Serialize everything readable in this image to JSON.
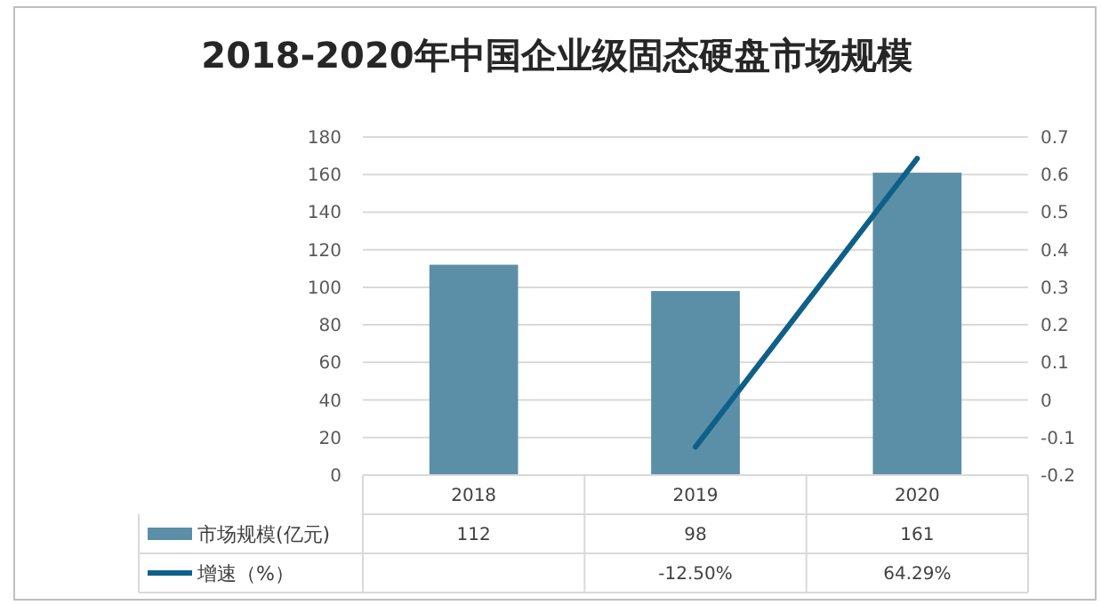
{
  "chart_data": {
    "type": "bar",
    "title": "2018-2020年中国企业级固态硬盘市场规模",
    "categories": [
      "2018",
      "2019",
      "2020"
    ],
    "series": [
      {
        "name": "市场规模(亿元)",
        "color": "#5b8fa8",
        "values": [
          112,
          98,
          161
        ],
        "value_labels": [
          "112",
          "98",
          "161"
        ]
      },
      {
        "name": "增速（%）",
        "type": "line",
        "axis": "y2",
        "color": "#0e6088",
        "values": [
          null,
          -0.125,
          0.6429
        ],
        "value_labels": [
          null,
          "-12.50%",
          "64.29%"
        ]
      }
    ],
    "ylim": [
      0,
      180
    ],
    "yticks": [
      0,
      20,
      40,
      60,
      80,
      100,
      120,
      140,
      160,
      180
    ],
    "y2lim": [
      -0.2,
      0.7
    ],
    "y2ticks": [
      -0.2,
      -0.1,
      0,
      0.1,
      0.2,
      0.3,
      0.4,
      0.5,
      0.6,
      0.7
    ],
    "grid": "y",
    "legend": "bottom"
  }
}
